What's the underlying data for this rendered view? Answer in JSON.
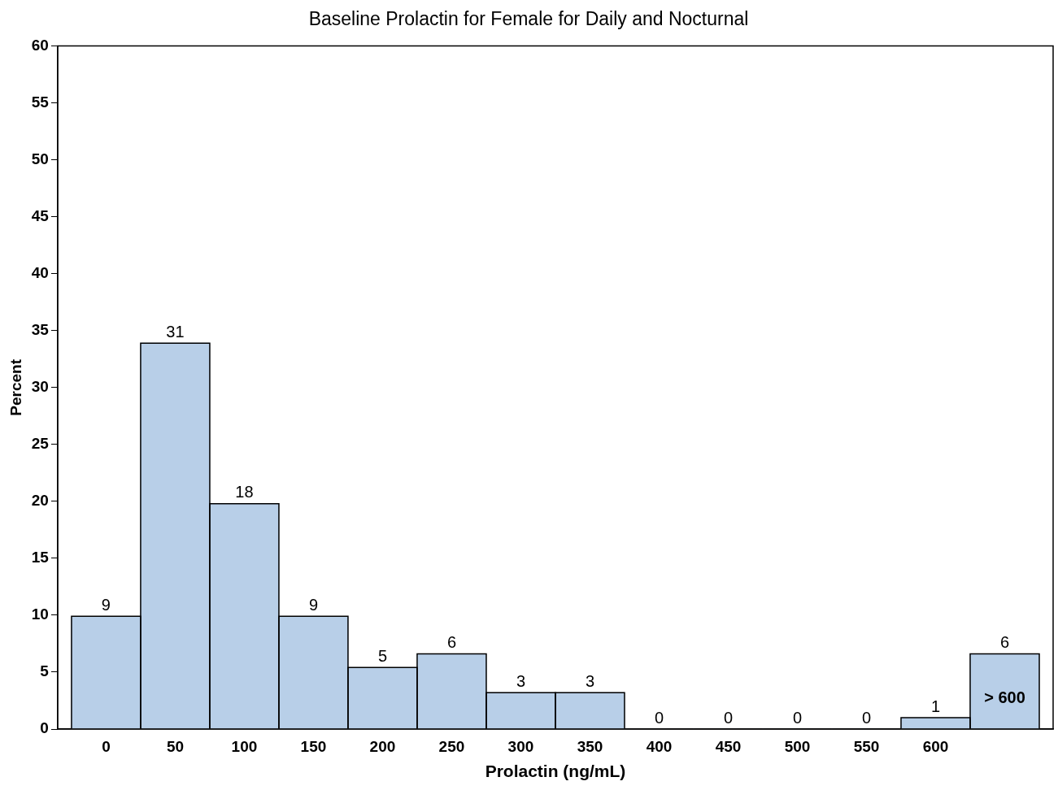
{
  "chart_data": {
    "type": "histogram",
    "title": "Baseline Prolactin for Female for Daily and Nocturnal",
    "xlabel": "Prolactin (ng/mL)",
    "ylabel": "Percent",
    "bins": [
      -25,
      25,
      75,
      125,
      175,
      225,
      275,
      325,
      375,
      425,
      475,
      525,
      575,
      625,
      675
    ],
    "values": [
      9.9,
      33.9,
      19.8,
      9.9,
      5.4,
      6.6,
      3.2,
      3.2,
      0,
      0,
      0,
      0,
      1.0,
      6.6
    ],
    "color": "#b8cfe8",
    "xlim": [
      -35,
      685
    ],
    "xticks": [
      0,
      50,
      100,
      150,
      200,
      250,
      300,
      350,
      400,
      450,
      500,
      550,
      600
    ],
    "ylim": [
      0,
      60
    ],
    "yticks": [
      0,
      5,
      10,
      15,
      20,
      25,
      30,
      35,
      40,
      45,
      50,
      55,
      60
    ],
    "grid": false,
    "legend": false,
    "annotations": [
      {
        "text": "9",
        "x": 0,
        "y": 9.9
      },
      {
        "text": "31",
        "x": 50,
        "y": 33.9
      },
      {
        "text": "18",
        "x": 100,
        "y": 19.8
      },
      {
        "text": "9",
        "x": 150,
        "y": 9.9
      },
      {
        "text": "5",
        "x": 200,
        "y": 5.4
      },
      {
        "text": "6",
        "x": 250,
        "y": 6.6
      },
      {
        "text": "3",
        "x": 300,
        "y": 3.2
      },
      {
        "text": "3",
        "x": 350,
        "y": 3.2
      },
      {
        "text": "0",
        "x": 400,
        "y": 0
      },
      {
        "text": "0",
        "x": 450,
        "y": 0
      },
      {
        "text": "0",
        "x": 500,
        "y": 0
      },
      {
        "text": "0",
        "x": 550,
        "y": 0
      },
      {
        "text": "1",
        "x": 600,
        "y": 1.0
      },
      {
        "text": "6",
        "x": 650,
        "y": 6.6
      },
      {
        "text": "> 600",
        "x": 650,
        "y": 6.6
      }
    ]
  }
}
